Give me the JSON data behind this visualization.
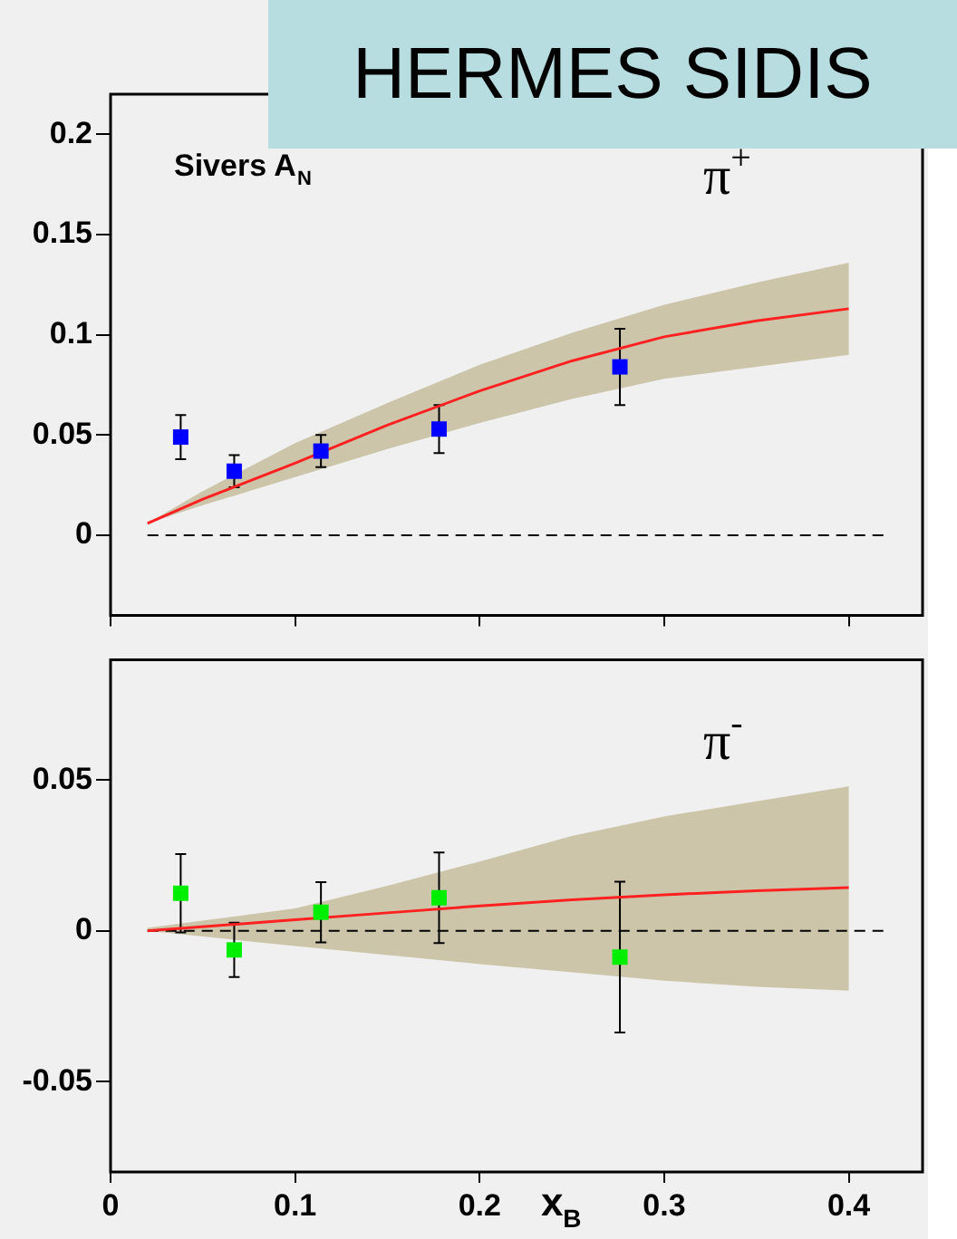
{
  "chart_data": [
    {
      "type": "scatter",
      "title": "HERMES SIDIS",
      "annotations": [
        "Sivers A$_{N}$",
        "π$^{+}$"
      ],
      "xlim": [
        0,
        0.44
      ],
      "xticks": [
        0,
        0.1,
        0.2,
        0.3,
        0.4
      ],
      "ylim": [
        -0.04,
        0.22
      ],
      "yticks": [
        0,
        0.05,
        0.1,
        0.15,
        0.2
      ],
      "tick_labels": "y",
      "grid": false,
      "legend": false,
      "ref_lines": [
        {
          "axis": "y",
          "value": 0,
          "line_style": "dashed",
          "color": "#000000"
        }
      ],
      "series": [
        {
          "color": "#0000ff",
          "marker": "square",
          "x": [
            0.038,
            0.067,
            0.114,
            0.178,
            0.276
          ],
          "values": [
            0.049,
            0.032,
            0.042,
            0.053,
            0.084
          ],
          "errors": [
            0.011,
            0.008,
            0.008,
            0.012,
            0.019
          ]
        },
        {
          "type": "line",
          "color": "#ff2020",
          "marker": "none",
          "line_style": "solid",
          "x": [
            0.02,
            0.05,
            0.1,
            0.15,
            0.2,
            0.25,
            0.3,
            0.35,
            0.4
          ],
          "values": [
            0.006,
            0.018,
            0.036,
            0.055,
            0.072,
            0.087,
            0.099,
            0.107,
            0.113
          ],
          "lower": [
            0.006,
            0.015,
            0.029,
            0.043,
            0.056,
            0.068,
            0.078,
            0.084,
            0.09
          ],
          "upper": [
            0.006,
            0.022,
            0.046,
            0.066,
            0.085,
            0.101,
            0.115,
            0.126,
            0.136
          ]
        }
      ]
    },
    {
      "type": "scatter",
      "xlabel": "x$_{B}$",
      "annotations": [
        "π$^{-}$"
      ],
      "xlim": [
        0,
        0.44
      ],
      "xticks": [
        0,
        0.1,
        0.2,
        0.3,
        0.4
      ],
      "ylim": [
        -0.08,
        0.09
      ],
      "yticks": [
        -0.05,
        0,
        0.05
      ],
      "grid": false,
      "legend": false,
      "ref_lines": [
        {
          "axis": "y",
          "value": 0,
          "line_style": "dashed",
          "color": "#000000"
        }
      ],
      "series": [
        {
          "color": "#00ee00",
          "marker": "square",
          "x": [
            0.038,
            0.067,
            0.114,
            0.178,
            0.276
          ],
          "values": [
            0.0125,
            -0.0063,
            0.0062,
            0.011,
            -0.0087
          ],
          "errors": [
            0.013,
            0.009,
            0.01,
            0.015,
            0.025
          ]
        },
        {
          "type": "line",
          "color": "#ff2020",
          "marker": "none",
          "line_style": "solid",
          "x": [
            0.02,
            0.1,
            0.15,
            0.2,
            0.25,
            0.3,
            0.35,
            0.4
          ],
          "values": [
            0,
            0.0037,
            0.006,
            0.0083,
            0.0103,
            0.012,
            0.0133,
            0.0144
          ],
          "lower": [
            0,
            -0.005,
            -0.008,
            -0.011,
            -0.0137,
            -0.0165,
            -0.0185,
            -0.0198
          ],
          "upper": [
            0.001,
            0.0075,
            0.015,
            0.023,
            0.0315,
            0.038,
            0.043,
            0.048
          ]
        }
      ]
    }
  ]
}
